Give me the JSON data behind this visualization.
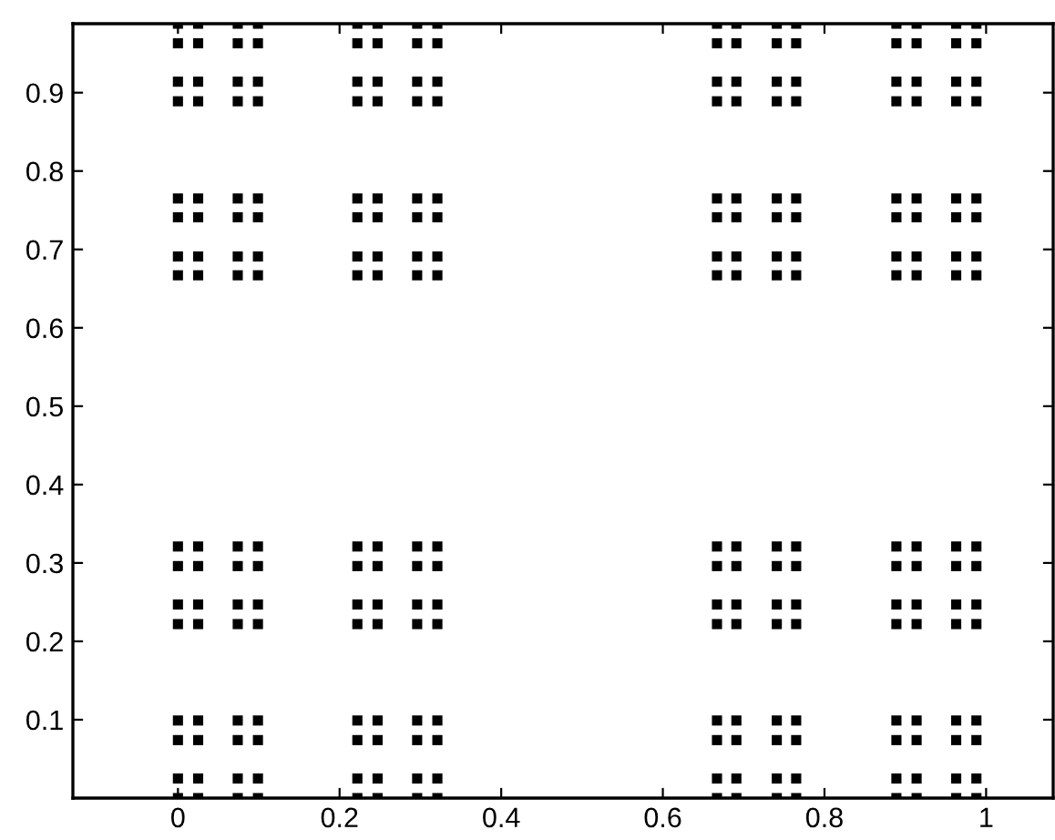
{
  "chart_data": {
    "type": "scatter",
    "marker": "square",
    "grid": false,
    "legend": false,
    "series": [
      {
        "color": "#000000",
        "x": [
          0,
          0,
          0,
          0,
          0,
          0,
          0,
          0,
          0,
          0,
          0,
          0,
          0,
          0,
          0,
          0
        ],
        "values": [
          0,
          0.025,
          0.074,
          0.099,
          0.222,
          0.247,
          0.296,
          0.321,
          0.667,
          0.691,
          0.741,
          0.765,
          0.889,
          0.914,
          0.963,
          0.988
        ]
      },
      {
        "color": "#000000",
        "x": [
          0.025,
          0.025,
          0.025,
          0.025,
          0.025,
          0.025,
          0.025,
          0.025,
          0.025,
          0.025,
          0.025,
          0.025,
          0.025,
          0.025,
          0.025,
          0.025
        ],
        "values": [
          0,
          0.025,
          0.074,
          0.099,
          0.222,
          0.247,
          0.296,
          0.321,
          0.667,
          0.691,
          0.741,
          0.765,
          0.889,
          0.914,
          0.963,
          0.988
        ]
      },
      {
        "color": "#000000",
        "x": [
          0.074,
          0.074,
          0.074,
          0.074,
          0.074,
          0.074,
          0.074,
          0.074,
          0.074,
          0.074,
          0.074,
          0.074,
          0.074,
          0.074,
          0.074,
          0.074
        ],
        "values": [
          0,
          0.025,
          0.074,
          0.099,
          0.222,
          0.247,
          0.296,
          0.321,
          0.667,
          0.691,
          0.741,
          0.765,
          0.889,
          0.914,
          0.963,
          0.988
        ]
      },
      {
        "color": "#000000",
        "x": [
          0.099,
          0.099,
          0.099,
          0.099,
          0.099,
          0.099,
          0.099,
          0.099,
          0.099,
          0.099,
          0.099,
          0.099,
          0.099,
          0.099,
          0.099,
          0.099
        ],
        "values": [
          0,
          0.025,
          0.074,
          0.099,
          0.222,
          0.247,
          0.296,
          0.321,
          0.667,
          0.691,
          0.741,
          0.765,
          0.889,
          0.914,
          0.963,
          0.988
        ]
      },
      {
        "color": "#000000",
        "x": [
          0.222,
          0.222,
          0.222,
          0.222,
          0.222,
          0.222,
          0.222,
          0.222,
          0.222,
          0.222,
          0.222,
          0.222,
          0.222,
          0.222,
          0.222,
          0.222
        ],
        "values": [
          0,
          0.025,
          0.074,
          0.099,
          0.222,
          0.247,
          0.296,
          0.321,
          0.667,
          0.691,
          0.741,
          0.765,
          0.889,
          0.914,
          0.963,
          0.988
        ]
      },
      {
        "color": "#000000",
        "x": [
          0.247,
          0.247,
          0.247,
          0.247,
          0.247,
          0.247,
          0.247,
          0.247,
          0.247,
          0.247,
          0.247,
          0.247,
          0.247,
          0.247,
          0.247,
          0.247
        ],
        "values": [
          0,
          0.025,
          0.074,
          0.099,
          0.222,
          0.247,
          0.296,
          0.321,
          0.667,
          0.691,
          0.741,
          0.765,
          0.889,
          0.914,
          0.963,
          0.988
        ]
      },
      {
        "color": "#000000",
        "x": [
          0.296,
          0.296,
          0.296,
          0.296,
          0.296,
          0.296,
          0.296,
          0.296,
          0.296,
          0.296,
          0.296,
          0.296,
          0.296,
          0.296,
          0.296,
          0.296
        ],
        "values": [
          0,
          0.025,
          0.074,
          0.099,
          0.222,
          0.247,
          0.296,
          0.321,
          0.667,
          0.691,
          0.741,
          0.765,
          0.889,
          0.914,
          0.963,
          0.988
        ]
      },
      {
        "color": "#000000",
        "x": [
          0.321,
          0.321,
          0.321,
          0.321,
          0.321,
          0.321,
          0.321,
          0.321,
          0.321,
          0.321,
          0.321,
          0.321,
          0.321,
          0.321,
          0.321,
          0.321
        ],
        "values": [
          0,
          0.025,
          0.074,
          0.099,
          0.222,
          0.247,
          0.296,
          0.321,
          0.667,
          0.691,
          0.741,
          0.765,
          0.889,
          0.914,
          0.963,
          0.988
        ]
      },
      {
        "color": "#000000",
        "x": [
          0.667,
          0.667,
          0.667,
          0.667,
          0.667,
          0.667,
          0.667,
          0.667,
          0.667,
          0.667,
          0.667,
          0.667,
          0.667,
          0.667,
          0.667,
          0.667
        ],
        "values": [
          0,
          0.025,
          0.074,
          0.099,
          0.222,
          0.247,
          0.296,
          0.321,
          0.667,
          0.691,
          0.741,
          0.765,
          0.889,
          0.914,
          0.963,
          0.988
        ]
      },
      {
        "color": "#000000",
        "x": [
          0.691,
          0.691,
          0.691,
          0.691,
          0.691,
          0.691,
          0.691,
          0.691,
          0.691,
          0.691,
          0.691,
          0.691,
          0.691,
          0.691,
          0.691,
          0.691
        ],
        "values": [
          0,
          0.025,
          0.074,
          0.099,
          0.222,
          0.247,
          0.296,
          0.321,
          0.667,
          0.691,
          0.741,
          0.765,
          0.889,
          0.914,
          0.963,
          0.988
        ]
      },
      {
        "color": "#000000",
        "x": [
          0.741,
          0.741,
          0.741,
          0.741,
          0.741,
          0.741,
          0.741,
          0.741,
          0.741,
          0.741,
          0.741,
          0.741,
          0.741,
          0.741,
          0.741,
          0.741
        ],
        "values": [
          0,
          0.025,
          0.074,
          0.099,
          0.222,
          0.247,
          0.296,
          0.321,
          0.667,
          0.691,
          0.741,
          0.765,
          0.889,
          0.914,
          0.963,
          0.988
        ]
      },
      {
        "color": "#000000",
        "x": [
          0.765,
          0.765,
          0.765,
          0.765,
          0.765,
          0.765,
          0.765,
          0.765,
          0.765,
          0.765,
          0.765,
          0.765,
          0.765,
          0.765,
          0.765,
          0.765
        ],
        "values": [
          0,
          0.025,
          0.074,
          0.099,
          0.222,
          0.247,
          0.296,
          0.321,
          0.667,
          0.691,
          0.741,
          0.765,
          0.889,
          0.914,
          0.963,
          0.988
        ]
      },
      {
        "color": "#000000",
        "x": [
          0.889,
          0.889,
          0.889,
          0.889,
          0.889,
          0.889,
          0.889,
          0.889,
          0.889,
          0.889,
          0.889,
          0.889,
          0.889,
          0.889,
          0.889,
          0.889
        ],
        "values": [
          0,
          0.025,
          0.074,
          0.099,
          0.222,
          0.247,
          0.296,
          0.321,
          0.667,
          0.691,
          0.741,
          0.765,
          0.889,
          0.914,
          0.963,
          0.988
        ]
      },
      {
        "color": "#000000",
        "x": [
          0.914,
          0.914,
          0.914,
          0.914,
          0.914,
          0.914,
          0.914,
          0.914,
          0.914,
          0.914,
          0.914,
          0.914,
          0.914,
          0.914,
          0.914,
          0.914
        ],
        "values": [
          0,
          0.025,
          0.074,
          0.099,
          0.222,
          0.247,
          0.296,
          0.321,
          0.667,
          0.691,
          0.741,
          0.765,
          0.889,
          0.914,
          0.963,
          0.988
        ]
      },
      {
        "color": "#000000",
        "x": [
          0.963,
          0.963,
          0.963,
          0.963,
          0.963,
          0.963,
          0.963,
          0.963,
          0.963,
          0.963,
          0.963,
          0.963,
          0.963,
          0.963,
          0.963,
          0.963
        ],
        "values": [
          0,
          0.025,
          0.074,
          0.099,
          0.222,
          0.247,
          0.296,
          0.321,
          0.667,
          0.691,
          0.741,
          0.765,
          0.889,
          0.914,
          0.963,
          0.988
        ]
      },
      {
        "color": "#000000",
        "x": [
          0.988,
          0.988,
          0.988,
          0.988,
          0.988,
          0.988,
          0.988,
          0.988,
          0.988,
          0.988,
          0.988,
          0.988,
          0.988,
          0.988,
          0.988,
          0.988
        ],
        "values": [
          0,
          0.025,
          0.074,
          0.099,
          0.222,
          0.247,
          0.296,
          0.321,
          0.667,
          0.691,
          0.741,
          0.765,
          0.889,
          0.914,
          0.963,
          0.988
        ]
      }
    ],
    "xlim": [
      -0.13,
      1.083
    ],
    "ylim": [
      0,
      0.988
    ],
    "xticks": [
      0,
      0.2,
      0.4,
      0.6,
      0.8,
      1
    ],
    "yticks": [
      0.1,
      0.2,
      0.3,
      0.4,
      0.5,
      0.6,
      0.7,
      0.8,
      0.9
    ]
  }
}
